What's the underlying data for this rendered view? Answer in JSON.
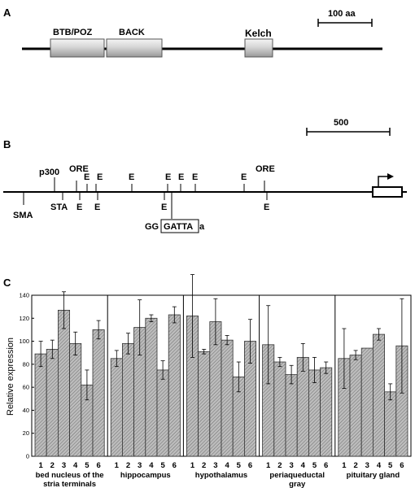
{
  "panel_a": {
    "label": "A",
    "scale_bar": "100 aa",
    "domains": [
      "BTB/POZ",
      "BACK",
      "Kelch"
    ]
  },
  "panel_b": {
    "label": "B",
    "scale_bar": "500",
    "top_labels": [
      "p300",
      "ORE",
      "E",
      "E",
      "E",
      "E",
      "E",
      "E",
      "E",
      "ORE"
    ],
    "bottom_labels": [
      "SMA",
      "STA",
      "E",
      "E",
      "E",
      "E"
    ],
    "motif": {
      "prefix": "GG",
      "boxed": "GATTA",
      "suffix": "a"
    }
  },
  "panel_c": {
    "label": "C"
  },
  "chart_data": {
    "type": "bar",
    "ylabel": "Relative expression",
    "ylim": [
      0,
      140
    ],
    "yticks": [
      "0",
      "20",
      "40",
      "60",
      "80",
      "100",
      "120",
      "140"
    ],
    "groups": [
      {
        "name": "bed nucleus of the stria terminals",
        "name_lines": [
          "bed nucleus of the",
          "stria terminals"
        ],
        "categories": [
          "1",
          "2",
          "3",
          "4",
          "5",
          "6"
        ],
        "values": [
          89,
          93,
          127,
          98,
          62,
          110
        ],
        "errors": [
          11,
          8,
          16,
          10,
          13,
          8
        ]
      },
      {
        "name": "hippocampus",
        "name_lines": [
          "hippocampus"
        ],
        "categories": [
          "1",
          "2",
          "3",
          "4",
          "5",
          "6"
        ],
        "values": [
          85,
          98,
          112,
          120,
          75,
          123
        ],
        "errors": [
          7,
          9,
          24,
          3,
          8,
          7
        ]
      },
      {
        "name": "hypothalamus",
        "name_lines": [
          "hypothalamus"
        ],
        "categories": [
          "1",
          "2",
          "3",
          "4",
          "5",
          "6"
        ],
        "values": [
          122,
          91,
          117,
          101,
          69,
          100
        ],
        "errors": [
          36,
          2,
          20,
          4,
          13,
          19
        ]
      },
      {
        "name": "periaqueductal gray",
        "name_lines": [
          "periaqueductal",
          "gray"
        ],
        "categories": [
          "1",
          "2",
          "3",
          "4",
          "5",
          "6"
        ],
        "values": [
          97,
          82,
          71,
          86,
          75,
          77
        ],
        "errors": [
          34,
          4,
          8,
          12,
          11,
          5
        ]
      },
      {
        "name": "pituitary gland",
        "name_lines": [
          "pituitary gland"
        ],
        "categories": [
          "1",
          "2",
          "3",
          "4",
          "5",
          "6"
        ],
        "values": [
          85,
          88,
          94,
          106,
          56,
          96
        ],
        "errors": [
          26,
          4,
          0,
          5,
          7,
          41
        ]
      }
    ]
  }
}
